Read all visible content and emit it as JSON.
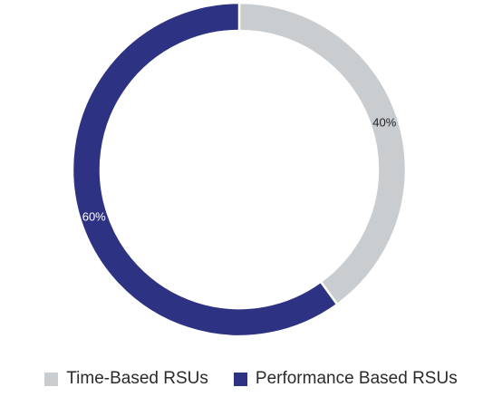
{
  "chart_data": {
    "type": "pie",
    "style": "donut",
    "slices": [
      {
        "label": "Time-Based RSUs",
        "value": 40,
        "display": "40%",
        "color": "#c9cdd0"
      },
      {
        "label": "Performance Based RSUs",
        "value": 60,
        "display": "60%",
        "color": "#2e3283"
      }
    ],
    "start": "12 o'clock, clockwise",
    "legend_position": "bottom"
  }
}
